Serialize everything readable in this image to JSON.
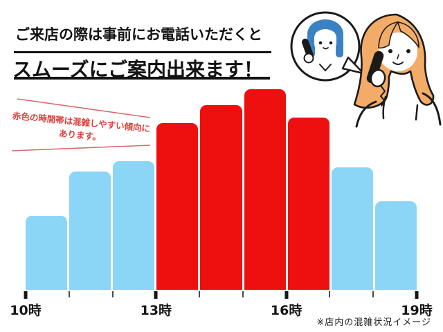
{
  "header": {
    "line1": "ご来店の際は事前にお電話いただくと",
    "line2": "スムーズにご案内出来ます！"
  },
  "annotation": {
    "line1": "赤色の時間帯は混雑しやすい傾向に",
    "line2": "あります。",
    "text_color": "#E03C3C",
    "line_color": "#D96A6A"
  },
  "footnote": {
    "text": "※店内の混雑状況イメージ"
  },
  "illustration": {
    "description": "speech-bubble with blue-haired staff on phone, orange-haired customer on phone",
    "staff_hair_color": "#3B82C4",
    "customer_hair_color": "#F3AC67",
    "outline_color": "#1a1a1a"
  },
  "chart_data": {
    "type": "bar",
    "title": "",
    "xlabel": "",
    "ylabel": "",
    "categories": [
      "10-11時",
      "11-12時",
      "12-13時",
      "13-14時",
      "14-15時",
      "15-16時",
      "16-17時",
      "17-18時",
      "18-19時"
    ],
    "values": [
      37,
      59,
      64,
      83,
      92,
      100,
      86,
      61,
      44
    ],
    "bar_colors": [
      "calm",
      "calm",
      "calm",
      "busy",
      "busy",
      "busy",
      "busy",
      "calm",
      "calm"
    ],
    "palette": {
      "calm": "#8BD5F6",
      "busy": "#EE0F0F"
    },
    "ylim": [
      0,
      100
    ],
    "grid": false,
    "legend_position": "none",
    "x_axis_ticks": [
      {
        "label": "10時",
        "major": true
      },
      {
        "label": "",
        "major": false
      },
      {
        "label": "",
        "major": false
      },
      {
        "label": "13時",
        "major": true
      },
      {
        "label": "",
        "major": false
      },
      {
        "label": "",
        "major": false
      },
      {
        "label": "16時",
        "major": true
      },
      {
        "label": "",
        "major": false
      },
      {
        "label": "",
        "major": false
      },
      {
        "label": "19時",
        "major": true
      }
    ]
  }
}
